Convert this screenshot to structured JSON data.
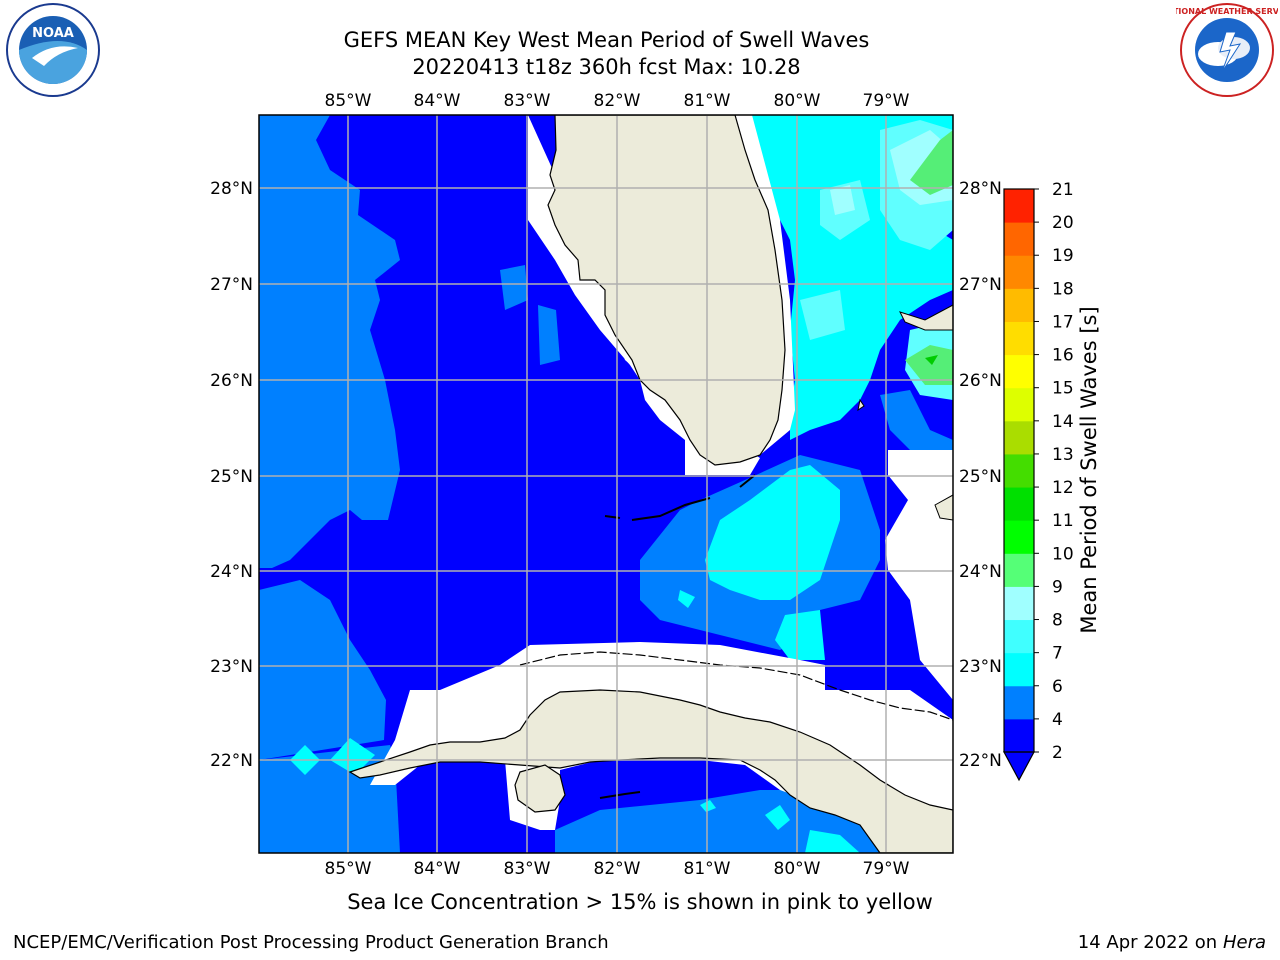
{
  "title": {
    "line1": "GEFS MEAN Key West Mean Period of Swell Waves",
    "line2": "20220413 t18z 360h fcst   Max: 10.28"
  },
  "map": {
    "lon_ticks": [
      "85°W",
      "84°W",
      "83°W",
      "82°W",
      "81°W",
      "80°W",
      "79°W"
    ],
    "lat_ticks": [
      "28°N",
      "27°N",
      "26°N",
      "25°N",
      "24°N",
      "23°N",
      "22°N"
    ],
    "lon_range": [
      -86,
      -78.3
    ],
    "lat_range": [
      21.0,
      28.75
    ],
    "colors": {
      "land": "#ecebda",
      "blank": "#ffffff",
      "coast": "#000000",
      "grid": "#b0b0b0"
    }
  },
  "colorbar": {
    "label": "Mean Period of Swell Waves [s]",
    "ticks": [
      "2",
      "4",
      "6",
      "7",
      "8",
      "9",
      "10",
      "11",
      "12",
      "13",
      "14",
      "15",
      "16",
      "17",
      "18",
      "19",
      "20",
      "21"
    ],
    "colors": [
      "#0000ff",
      "#0080ff",
      "#00ffff",
      "#40ffff",
      "#a0ffff",
      "#55ff77",
      "#00ff00",
      "#00e000",
      "#44dd00",
      "#aadd00",
      "#ddff00",
      "#ffff00",
      "#ffdd00",
      "#ffbb00",
      "#ff8800",
      "#ff6600",
      "#ff2200",
      "#ff0000"
    ]
  },
  "note": "Sea Ice Concentration > 15% is shown in pink to yellow",
  "footer": {
    "left": "NCEP/EMC/Verification Post Processing Product Generation Branch",
    "date": "14 Apr 2022 on ",
    "host": "Hera"
  },
  "logos": {
    "noaa_text": "NOAA",
    "nws_text": "NATIONAL WEATHER SERVICE"
  }
}
